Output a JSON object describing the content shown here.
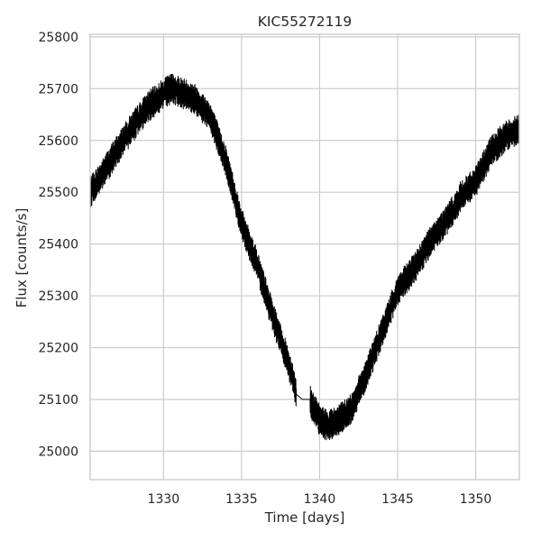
{
  "chart_data": {
    "type": "line",
    "title": "KIC55272119",
    "xlabel": "Time [days]",
    "ylabel": "Flux [counts/s]",
    "xlim": [
      1325.3,
      1352.8
    ],
    "ylim": [
      24945,
      25805
    ],
    "x_ticks": [
      1330,
      1335,
      1340,
      1345,
      1350
    ],
    "y_ticks": [
      25000,
      25100,
      25200,
      25300,
      25400,
      25500,
      25600,
      25700,
      25800
    ],
    "grid": true,
    "series": [
      {
        "color": "#000000",
        "x": [
          1325.3,
          1326.0,
          1327.0,
          1328.0,
          1329.0,
          1330.0,
          1330.5,
          1331.0,
          1332.0,
          1333.0,
          1334.0,
          1335.0,
          1336.0,
          1337.0,
          1338.0,
          1338.3,
          1338.5,
          1338.9,
          1339.4,
          1339.5,
          1340.0,
          1340.5,
          1341.0,
          1342.0,
          1343.0,
          1344.0,
          1345.0,
          1346.0,
          1347.0,
          1348.0,
          1348.9,
          1349.0,
          1350.0,
          1351.0,
          1352.0,
          1352.7
        ],
        "y": [
          25500,
          25530,
          25580,
          25625,
          25665,
          25690,
          25700,
          25695,
          25680,
          25645,
          25560,
          25440,
          25360,
          25260,
          25170,
          25140,
          25110,
          25100,
          25100,
          25090,
          25060,
          25050,
          25055,
          25080,
          25150,
          25230,
          25310,
          25350,
          25400,
          25440,
          25480,
          25490,
          25520,
          25580,
          25610,
          25620
        ],
        "noise_amplitude": 30,
        "gaps": [
          [
            1338.5,
            1339.4
          ]
        ]
      }
    ]
  }
}
